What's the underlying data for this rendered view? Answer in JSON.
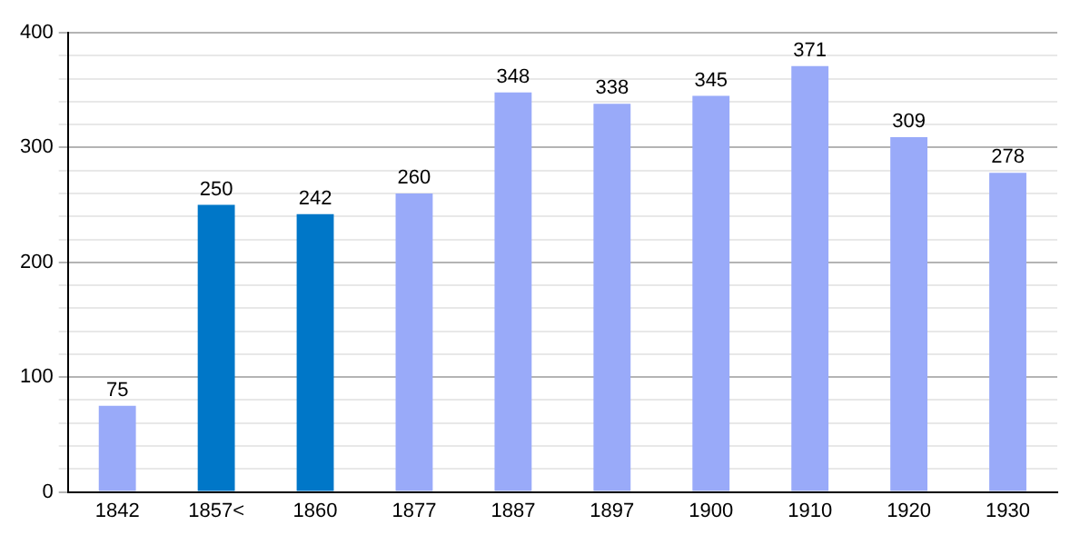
{
  "chart_data": {
    "type": "bar",
    "categories": [
      "1842",
      "1857<",
      "1860",
      "1877",
      "1887",
      "1897",
      "1900",
      "1910",
      "1920",
      "1930"
    ],
    "values": [
      75,
      250,
      242,
      260,
      348,
      338,
      345,
      371,
      309,
      278
    ],
    "colors": [
      "#99aaf9",
      "#0077c8",
      "#0077c8",
      "#99aaf9",
      "#99aaf9",
      "#99aaf9",
      "#99aaf9",
      "#99aaf9",
      "#99aaf9",
      "#99aaf9"
    ],
    "ylim": [
      0,
      400
    ],
    "yticks": [
      0,
      {
        "value": 20,
        "label": null
      },
      {
        "value": 40,
        "label": null
      },
      {
        "value": 60,
        "label": null
      },
      {
        "value": 80,
        "label": null
      },
      100,
      {
        "value": 120,
        "label": null
      },
      {
        "value": 140,
        "label": null
      },
      {
        "value": 160,
        "label": null
      },
      {
        "value": 180,
        "label": null
      },
      200,
      {
        "value": 220,
        "label": null
      },
      {
        "value": 240,
        "label": null
      },
      {
        "value": 260,
        "label": null
      },
      {
        "value": 280,
        "label": null
      },
      300,
      {
        "value": 320,
        "label": null
      },
      {
        "value": 340,
        "label": null
      },
      {
        "value": 360,
        "label": null
      },
      {
        "value": 380,
        "label": null
      },
      400
    ],
    "grid": "y",
    "data_labels": true
  }
}
